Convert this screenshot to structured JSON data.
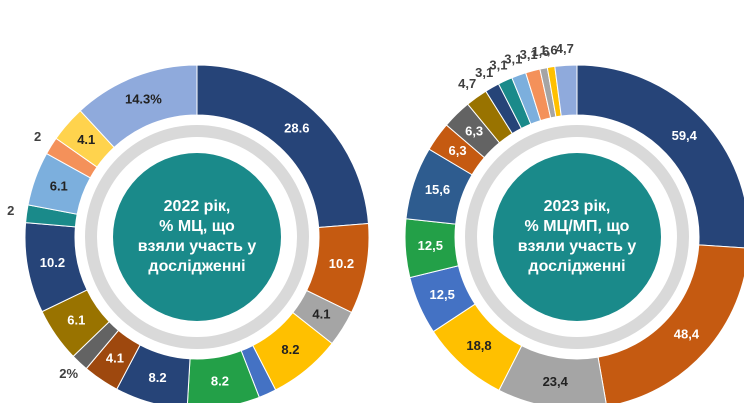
{
  "chart_data": [
    {
      "type": "donut",
      "title": [
        "2022 рік,",
        "% МЦ, що",
        "взяли участь у",
        "дослідженні"
      ],
      "values": [
        28.6,
        10.2,
        4.1,
        8.2,
        2,
        8.2,
        8.2,
        4.1,
        2,
        6.1,
        10.2,
        2,
        6.1,
        2,
        4.1,
        14.3
      ],
      "value_labels": [
        "28.6",
        "10.2",
        "4.1",
        "8.2",
        "2",
        "8.2",
        "8.2",
        "4.1",
        "2%",
        "6.1",
        "10.2",
        "2",
        "6.1",
        "2",
        "4.1",
        "14.3%"
      ],
      "colors": [
        "#264478",
        "#c55a11",
        "#a5a5a5",
        "#ffc000",
        "#4472c4",
        "#23a048",
        "#264478",
        "#9e480e",
        "#636363",
        "#997300",
        "#264478",
        "#1a8a8a",
        "#7cafdd",
        "#f4915a",
        "#ffd34d",
        "#8faadc"
      ]
    },
    {
      "type": "donut",
      "title": [
        "2023 рік,",
        "% МЦ/МП, що",
        "взяли участь у",
        "дослідженні"
      ],
      "values": [
        59.4,
        48.4,
        23.4,
        18.8,
        12.5,
        12.5,
        15.6,
        6.3,
        6.3,
        4.7,
        3.1,
        3.1,
        3.1,
        3.1,
        1.6,
        1.6,
        4.7
      ],
      "value_labels": [
        "59,4",
        "48,4",
        "23,4",
        "18,8",
        "12,5",
        "12,5",
        "15,6",
        "6,3",
        "6,3",
        "4,7",
        "3,1",
        "3,1",
        "3,1",
        "3,1",
        "1,6",
        "1,6",
        "4,7"
      ],
      "colors": [
        "#264478",
        "#c55a11",
        "#a5a5a5",
        "#ffc000",
        "#4472c4",
        "#23a048",
        "#2e5c8f",
        "#c55a11",
        "#636363",
        "#997300",
        "#264478",
        "#1a8a8a",
        "#7cafdd",
        "#f4915a",
        "#a5a5a5",
        "#ffc000",
        "#8faadc"
      ]
    }
  ]
}
